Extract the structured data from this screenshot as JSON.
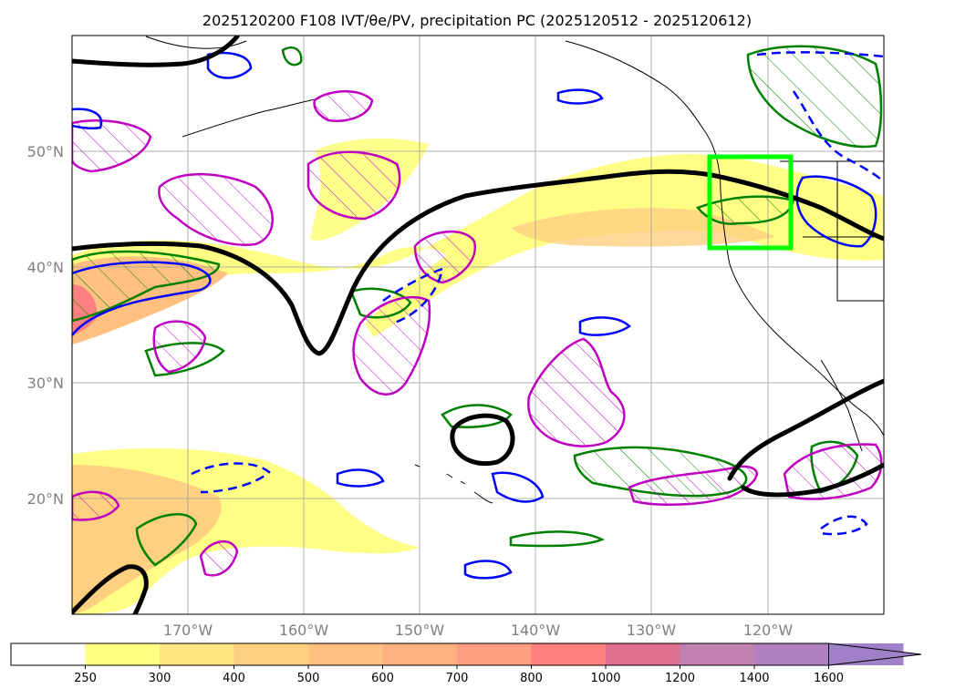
{
  "title": "2025120200 F108 IVT/θe/PV, precipitation PC (2025120512 - 2025120612)",
  "map": {
    "lon_range": [
      -180,
      -110
    ],
    "lat_range": [
      10,
      60
    ],
    "lon_ticks": [
      {
        "value": -170,
        "label": "170°W"
      },
      {
        "value": -160,
        "label": "160°W"
      },
      {
        "value": -150,
        "label": "150°W"
      },
      {
        "value": -140,
        "label": "140°W"
      },
      {
        "value": -130,
        "label": "130°W"
      },
      {
        "value": -120,
        "label": "120°W"
      }
    ],
    "lat_ticks": [
      {
        "value": 50,
        "label": "50°N"
      },
      {
        "value": 40,
        "label": "40°N"
      },
      {
        "value": 30,
        "label": "30°N"
      },
      {
        "value": 20,
        "label": "20°N"
      }
    ],
    "grid": true,
    "highlight_box": {
      "color": "#00ff00",
      "lon": [
        -125,
        -118
      ],
      "lat": [
        41.5,
        49.5
      ]
    },
    "colors": {
      "pv_contour": "#000000",
      "theta_e_hatch": "#c000c0",
      "precip_pc": "#008000",
      "blue_contour": "#0000ff",
      "grid": "#a0a0a0",
      "tick_label": "#808080"
    }
  },
  "colorbar": {
    "boundaries": [
      "250",
      "300",
      "400",
      "500",
      "600",
      "700",
      "800",
      "1000",
      "1200",
      "1400",
      "1600"
    ],
    "colors": [
      "#ffffff",
      "#ffff80",
      "#ffe680",
      "#ffd080",
      "#ffc080",
      "#ffb080",
      "#ff9f80",
      "#ff8080",
      "#e07090",
      "#c080b0",
      "#b080c0",
      "#a080c8"
    ],
    "extend": "max"
  }
}
